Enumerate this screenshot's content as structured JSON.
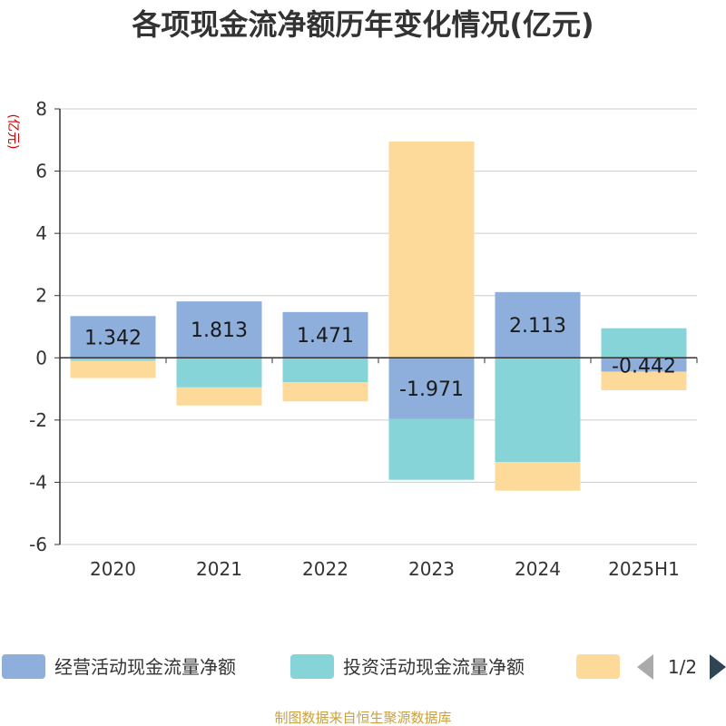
{
  "chart_data": {
    "type": "bar",
    "stacked": true,
    "title": "各项现金流净额历年变化情况(亿元)",
    "ylabel": "(亿元)",
    "xlabel": "",
    "categories": [
      "2020",
      "2021",
      "2022",
      "2023",
      "2024",
      "2025H1"
    ],
    "ylim": [
      -6,
      8
    ],
    "yticks": [
      8,
      6,
      4,
      2,
      0,
      -2,
      -4,
      -6
    ],
    "grid": true,
    "series": [
      {
        "name": "经营活动现金流量净额",
        "color": "#8eaedc",
        "values": [
          1.342,
          1.813,
          1.471,
          -1.971,
          2.113,
          -0.442
        ],
        "labels": [
          "1.342",
          "1.813",
          "1.471",
          "-1.971",
          "2.113",
          "-0.442"
        ]
      },
      {
        "name": "投资活动现金流量净额",
        "color": "#86d4d8",
        "values": [
          -0.1,
          -0.95,
          -0.78,
          -1.95,
          -3.35,
          0.95
        ]
      },
      {
        "name": "",
        "color": "#fdd99a",
        "values": [
          -0.55,
          -0.58,
          -0.62,
          6.95,
          -0.92,
          -0.6
        ]
      }
    ],
    "legend_position": "bottom",
    "legend_page": "1/2"
  },
  "source": "制图数据来自恒生聚源数据库"
}
